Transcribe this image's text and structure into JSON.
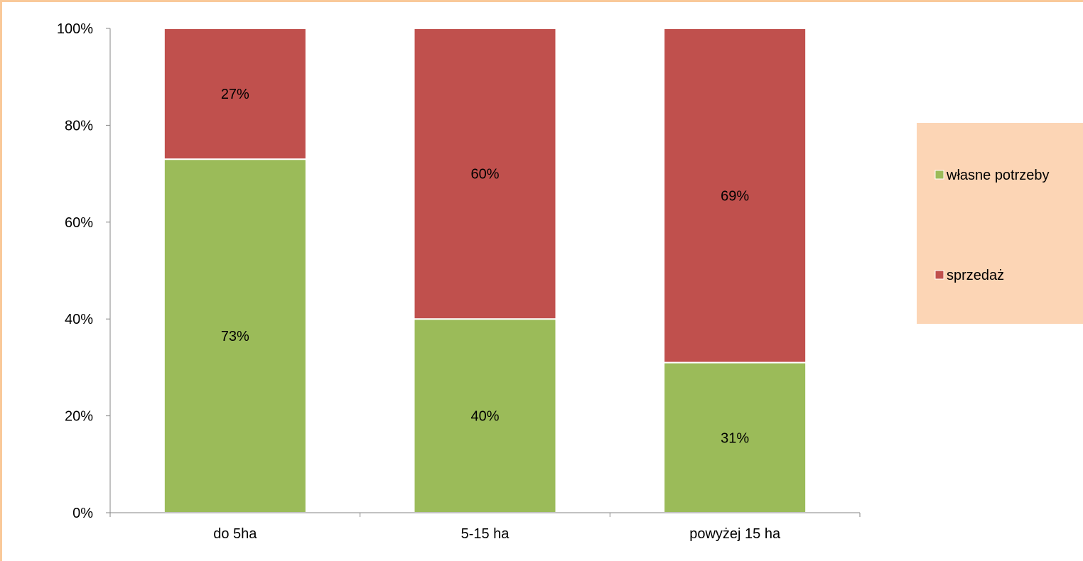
{
  "chart_data": {
    "type": "bar",
    "stacked": true,
    "percent_stacked": true,
    "categories": [
      "do 5ha",
      "5-15 ha",
      "powyżej 15 ha"
    ],
    "series": [
      {
        "name": "własne potrzeby",
        "values": [
          73,
          40,
          31
        ],
        "color": "#9bbb59"
      },
      {
        "name": "sprzedaż",
        "values": [
          27,
          60,
          69
        ],
        "color": "#c0504d"
      }
    ],
    "data_labels": [
      [
        "73%",
        "40%",
        "31%"
      ],
      [
        "27%",
        "60%",
        "69%"
      ]
    ],
    "y_ticks": [
      "0%",
      "20%",
      "40%",
      "60%",
      "80%",
      "100%"
    ],
    "ylim": [
      0,
      100
    ],
    "grid": false,
    "legend_position": "right",
    "legend_background": "#fcd5b5",
    "frame_color": "#f9c999"
  }
}
